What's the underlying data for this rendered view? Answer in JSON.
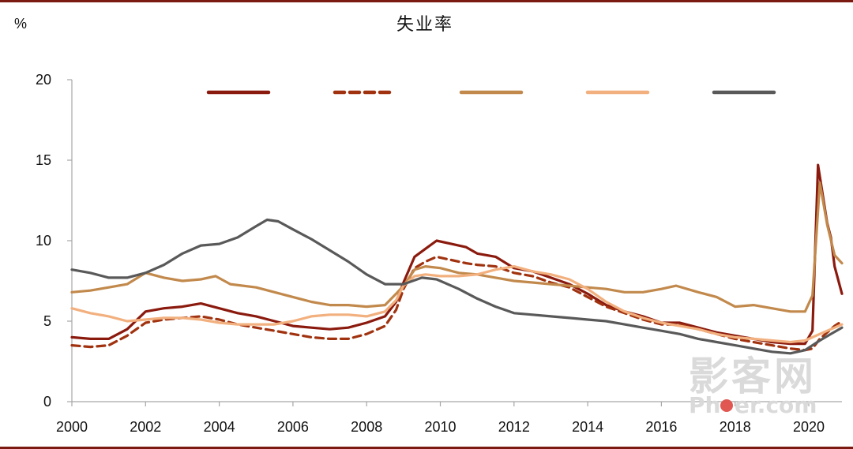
{
  "chart_data": {
    "type": "line",
    "title": "失业率",
    "ylabel": "%",
    "xlabel": "",
    "xlim": [
      2000,
      2020.9
    ],
    "ylim": [
      0,
      20
    ],
    "x_ticks": [
      "2000",
      "2002",
      "2004",
      "2006",
      "2008",
      "2010",
      "2012",
      "2014",
      "2016",
      "2018",
      "2020"
    ],
    "y_ticks": [
      "0",
      "5",
      "10",
      "15",
      "20"
    ],
    "grid": false,
    "legend": "top",
    "series": [
      {
        "color": "#8b1a0e",
        "dash": "solid",
        "points": [
          [
            2000,
            4.0
          ],
          [
            2000.5,
            3.9
          ],
          [
            2001,
            3.9
          ],
          [
            2001.5,
            4.5
          ],
          [
            2002,
            5.6
          ],
          [
            2002.5,
            5.8
          ],
          [
            2003,
            5.9
          ],
          [
            2003.5,
            6.1
          ],
          [
            2004,
            5.8
          ],
          [
            2004.5,
            5.5
          ],
          [
            2005,
            5.3
          ],
          [
            2005.5,
            5.0
          ],
          [
            2006,
            4.7
          ],
          [
            2006.5,
            4.6
          ],
          [
            2007,
            4.5
          ],
          [
            2007.5,
            4.6
          ],
          [
            2008,
            4.9
          ],
          [
            2008.5,
            5.3
          ],
          [
            2008.8,
            6.2
          ],
          [
            2009,
            7.4
          ],
          [
            2009.3,
            9.0
          ],
          [
            2009.6,
            9.5
          ],
          [
            2009.9,
            10.0
          ],
          [
            2010.3,
            9.8
          ],
          [
            2010.7,
            9.6
          ],
          [
            2011,
            9.2
          ],
          [
            2011.5,
            9.0
          ],
          [
            2012,
            8.3
          ],
          [
            2012.5,
            8.1
          ],
          [
            2013,
            7.7
          ],
          [
            2013.5,
            7.3
          ],
          [
            2014,
            6.7
          ],
          [
            2014.5,
            6.0
          ],
          [
            2015,
            5.6
          ],
          [
            2015.5,
            5.3
          ],
          [
            2016,
            4.9
          ],
          [
            2016.5,
            4.9
          ],
          [
            2017,
            4.6
          ],
          [
            2017.5,
            4.3
          ],
          [
            2018,
            4.1
          ],
          [
            2018.5,
            3.9
          ],
          [
            2019,
            3.7
          ],
          [
            2019.5,
            3.6
          ],
          [
            2019.9,
            3.6
          ],
          [
            2020.1,
            4.4
          ],
          [
            2020.25,
            14.7
          ],
          [
            2020.5,
            11.1
          ],
          [
            2020.6,
            10.2
          ],
          [
            2020.7,
            8.4
          ],
          [
            2020.9,
            6.7
          ]
        ]
      },
      {
        "color": "#a0320f",
        "dash": "dashed",
        "points": [
          [
            2000,
            3.5
          ],
          [
            2000.5,
            3.4
          ],
          [
            2001,
            3.5
          ],
          [
            2001.5,
            4.1
          ],
          [
            2002,
            4.9
          ],
          [
            2002.5,
            5.1
          ],
          [
            2003,
            5.2
          ],
          [
            2003.5,
            5.3
          ],
          [
            2004,
            5.1
          ],
          [
            2004.5,
            4.8
          ],
          [
            2005,
            4.6
          ],
          [
            2005.5,
            4.4
          ],
          [
            2006,
            4.2
          ],
          [
            2006.5,
            4.0
          ],
          [
            2007,
            3.9
          ],
          [
            2007.5,
            3.9
          ],
          [
            2008,
            4.2
          ],
          [
            2008.5,
            4.7
          ],
          [
            2008.8,
            5.7
          ],
          [
            2009,
            7.0
          ],
          [
            2009.3,
            8.3
          ],
          [
            2009.6,
            8.7
          ],
          [
            2009.9,
            9.0
          ],
          [
            2010.3,
            8.8
          ],
          [
            2010.7,
            8.6
          ],
          [
            2011,
            8.5
          ],
          [
            2011.5,
            8.4
          ],
          [
            2012,
            8.0
          ],
          [
            2012.5,
            7.8
          ],
          [
            2013,
            7.4
          ],
          [
            2013.5,
            7.1
          ],
          [
            2014,
            6.5
          ],
          [
            2014.5,
            5.9
          ],
          [
            2015,
            5.5
          ],
          [
            2015.5,
            5.1
          ],
          [
            2016,
            4.8
          ],
          [
            2016.5,
            4.8
          ],
          [
            2017,
            4.5
          ],
          [
            2017.5,
            4.2
          ],
          [
            2018,
            3.9
          ],
          [
            2018.5,
            3.7
          ],
          [
            2019,
            3.5
          ],
          [
            2019.5,
            3.3
          ],
          [
            2019.9,
            3.2
          ],
          [
            2020.1,
            3.3
          ],
          [
            2020.3,
            3.9
          ],
          [
            2020.5,
            4.3
          ],
          [
            2020.7,
            4.7
          ],
          [
            2020.9,
            5.0
          ]
        ]
      },
      {
        "color": "#c2894c",
        "dash": "solid",
        "points": [
          [
            2000,
            6.8
          ],
          [
            2000.5,
            6.9
          ],
          [
            2001,
            7.1
          ],
          [
            2001.5,
            7.3
          ],
          [
            2002,
            8.0
          ],
          [
            2002.5,
            7.7
          ],
          [
            2003,
            7.5
          ],
          [
            2003.5,
            7.6
          ],
          [
            2003.9,
            7.8
          ],
          [
            2004.3,
            7.3
          ],
          [
            2005,
            7.1
          ],
          [
            2005.5,
            6.8
          ],
          [
            2006,
            6.5
          ],
          [
            2006.5,
            6.2
          ],
          [
            2007,
            6.0
          ],
          [
            2007.5,
            6.0
          ],
          [
            2008,
            5.9
          ],
          [
            2008.5,
            6.0
          ],
          [
            2008.8,
            6.7
          ],
          [
            2009,
            7.2
          ],
          [
            2009.3,
            8.2
          ],
          [
            2009.6,
            8.4
          ],
          [
            2010,
            8.3
          ],
          [
            2010.5,
            8.0
          ],
          [
            2011,
            7.9
          ],
          [
            2011.5,
            7.7
          ],
          [
            2012,
            7.5
          ],
          [
            2012.5,
            7.4
          ],
          [
            2013,
            7.3
          ],
          [
            2013.5,
            7.2
          ],
          [
            2014,
            7.1
          ],
          [
            2014.5,
            7.0
          ],
          [
            2015,
            6.8
          ],
          [
            2015.5,
            6.8
          ],
          [
            2016,
            7.0
          ],
          [
            2016.4,
            7.2
          ],
          [
            2017,
            6.8
          ],
          [
            2017.5,
            6.5
          ],
          [
            2018,
            5.9
          ],
          [
            2018.5,
            6.0
          ],
          [
            2019,
            5.8
          ],
          [
            2019.5,
            5.6
          ],
          [
            2019.9,
            5.6
          ],
          [
            2020.1,
            6.6
          ],
          [
            2020.3,
            13.6
          ],
          [
            2020.5,
            11.0
          ],
          [
            2020.7,
            9.1
          ],
          [
            2020.9,
            8.6
          ]
        ]
      },
      {
        "color": "#f2b07f",
        "dash": "solid",
        "points": [
          [
            2000,
            5.8
          ],
          [
            2000.5,
            5.5
          ],
          [
            2001,
            5.3
          ],
          [
            2001.5,
            5.0
          ],
          [
            2002,
            5.1
          ],
          [
            2002.5,
            5.2
          ],
          [
            2003,
            5.2
          ],
          [
            2003.5,
            5.1
          ],
          [
            2004,
            4.9
          ],
          [
            2004.5,
            4.8
          ],
          [
            2005,
            4.8
          ],
          [
            2005.5,
            4.8
          ],
          [
            2006,
            5.0
          ],
          [
            2006.5,
            5.3
          ],
          [
            2007,
            5.4
          ],
          [
            2007.5,
            5.4
          ],
          [
            2008,
            5.3
          ],
          [
            2008.5,
            5.6
          ],
          [
            2008.8,
            6.3
          ],
          [
            2009,
            7.2
          ],
          [
            2009.3,
            7.8
          ],
          [
            2009.6,
            7.9
          ],
          [
            2010,
            7.8
          ],
          [
            2010.5,
            7.8
          ],
          [
            2011,
            7.9
          ],
          [
            2011.5,
            8.2
          ],
          [
            2012,
            8.4
          ],
          [
            2012.5,
            8.1
          ],
          [
            2013,
            7.9
          ],
          [
            2013.5,
            7.6
          ],
          [
            2014,
            7.0
          ],
          [
            2014.5,
            6.2
          ],
          [
            2015,
            5.6
          ],
          [
            2015.5,
            5.2
          ],
          [
            2016,
            4.9
          ],
          [
            2016.5,
            4.7
          ],
          [
            2017,
            4.5
          ],
          [
            2017.5,
            4.2
          ],
          [
            2018,
            4.0
          ],
          [
            2018.5,
            3.9
          ],
          [
            2019,
            3.8
          ],
          [
            2019.5,
            3.7
          ],
          [
            2019.9,
            3.8
          ],
          [
            2020.2,
            4.1
          ],
          [
            2020.5,
            4.4
          ],
          [
            2020.7,
            4.6
          ],
          [
            2020.9,
            4.8
          ]
        ]
      },
      {
        "color": "#595959",
        "dash": "solid",
        "points": [
          [
            2000,
            8.2
          ],
          [
            2000.5,
            8.0
          ],
          [
            2001,
            7.7
          ],
          [
            2001.5,
            7.7
          ],
          [
            2002,
            8.0
          ],
          [
            2002.5,
            8.5
          ],
          [
            2003,
            9.2
          ],
          [
            2003.5,
            9.7
          ],
          [
            2004,
            9.8
          ],
          [
            2004.5,
            10.2
          ],
          [
            2005,
            10.9
          ],
          [
            2005.3,
            11.3
          ],
          [
            2005.6,
            11.2
          ],
          [
            2006,
            10.7
          ],
          [
            2006.5,
            10.1
          ],
          [
            2007,
            9.4
          ],
          [
            2007.5,
            8.7
          ],
          [
            2008,
            7.9
          ],
          [
            2008.5,
            7.3
          ],
          [
            2009,
            7.3
          ],
          [
            2009.5,
            7.7
          ],
          [
            2009.9,
            7.6
          ],
          [
            2010.5,
            7.0
          ],
          [
            2011,
            6.4
          ],
          [
            2011.5,
            5.9
          ],
          [
            2012,
            5.5
          ],
          [
            2012.5,
            5.4
          ],
          [
            2013,
            5.3
          ],
          [
            2013.5,
            5.2
          ],
          [
            2014,
            5.1
          ],
          [
            2014.5,
            5.0
          ],
          [
            2015,
            4.8
          ],
          [
            2015.5,
            4.6
          ],
          [
            2016,
            4.4
          ],
          [
            2016.5,
            4.2
          ],
          [
            2017,
            3.9
          ],
          [
            2017.5,
            3.7
          ],
          [
            2018,
            3.5
          ],
          [
            2018.5,
            3.3
          ],
          [
            2019,
            3.1
          ],
          [
            2019.5,
            3.0
          ],
          [
            2019.9,
            3.2
          ],
          [
            2020.3,
            3.8
          ],
          [
            2020.6,
            4.2
          ],
          [
            2020.9,
            4.6
          ]
        ]
      }
    ]
  },
  "watermark": {
    "text_cn": "影客网",
    "text_en_before": "Ph",
    "text_en_after": "er.com"
  }
}
